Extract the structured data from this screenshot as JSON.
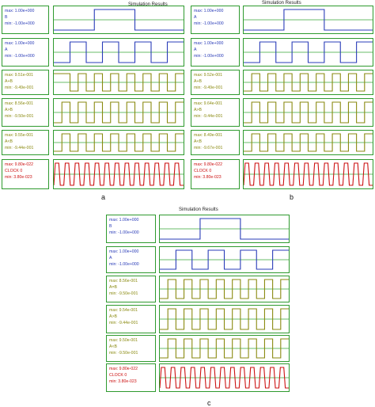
{
  "panels": [
    {
      "id": "a",
      "title": "Simulation Results",
      "label": "a",
      "rows": [
        {
          "max": "max: 1.00e+000",
          "name": "B",
          "min": "min: -1.00e+000",
          "color": "#2a3cb8",
          "wave": [
            0,
            0,
            0,
            0,
            0,
            1,
            1,
            1,
            1,
            1,
            0,
            0,
            0,
            0,
            0,
            0
          ]
        },
        {
          "max": "max: 1.00e+000",
          "name": "A",
          "min": "min: -1.00e+000",
          "color": "#2a3cb8",
          "wave": [
            0,
            0,
            1,
            1,
            0,
            0,
            1,
            1,
            0,
            0,
            1,
            1,
            0,
            0,
            1,
            1
          ]
        },
        {
          "max": "max: 9.51e-001",
          "name": "A+B",
          "min": "min: -9.49e-001",
          "color": "#8a8a10",
          "wave": [
            1,
            1,
            0,
            1,
            0,
            1,
            0,
            1,
            0,
            1,
            0,
            1,
            0,
            1,
            0,
            1
          ]
        },
        {
          "max": "max: 8.56e-001",
          "name": "A>B",
          "min": "min: -9.50e-001",
          "color": "#8a8a10",
          "wave": [
            0,
            1,
            0,
            1,
            0,
            1,
            0,
            1,
            0,
            1,
            0,
            1,
            0,
            1,
            0,
            1
          ]
        },
        {
          "max": "max: 9.55e-001",
          "name": "A<B",
          "min": "min: -9.44e-001",
          "color": "#8a8a10",
          "wave": [
            0,
            1,
            0,
            1,
            0,
            1,
            0,
            1,
            0,
            1,
            0,
            1,
            0,
            1,
            0,
            1
          ]
        },
        {
          "max": "max: 9.80e-022",
          "name": "CLOCK 0",
          "min": "min: 3.80e-023",
          "color": "#cc1010",
          "wave": "clock"
        }
      ]
    },
    {
      "id": "b",
      "title": "Simulation Results",
      "label": "b",
      "rows": [
        {
          "max": "max: 1.00e+000",
          "name": "A",
          "min": "min: -1.00e+000",
          "color": "#2a3cb8",
          "wave": [
            0,
            0,
            0,
            0,
            0,
            1,
            1,
            1,
            1,
            1,
            0,
            0,
            0,
            0,
            0,
            0
          ]
        },
        {
          "max": "max: 1.00e+000",
          "name": "A",
          "min": "min: -1.00e+000",
          "color": "#2a3cb8",
          "wave": [
            0,
            0,
            1,
            1,
            0,
            0,
            1,
            1,
            0,
            0,
            1,
            1,
            0,
            0,
            1,
            1
          ]
        },
        {
          "max": "max: 9.52e-001",
          "name": "A+B",
          "min": "min: -9.49e-001",
          "color": "#8a8a10",
          "wave": [
            0,
            1,
            0,
            1,
            0,
            1,
            0,
            1,
            0,
            1,
            0,
            1,
            0,
            1,
            0,
            1
          ]
        },
        {
          "max": "max: 9.64e-001",
          "name": "A>B",
          "min": "min: -9.44e-001",
          "color": "#8a8a10",
          "wave": [
            0,
            1,
            0,
            1,
            0,
            1,
            0,
            1,
            0,
            1,
            0,
            1,
            0,
            1,
            0,
            1
          ]
        },
        {
          "max": "max: 8.49e-001",
          "name": "A<B",
          "min": "min: -9.67e-001",
          "color": "#8a8a10",
          "wave": [
            0,
            1,
            0,
            1,
            0,
            1,
            0,
            1,
            0,
            1,
            0,
            1,
            0,
            1,
            0,
            1
          ]
        },
        {
          "max": "max: 9.80e-022",
          "name": "CLOCK 0",
          "min": "min: 3.80e-023",
          "color": "#cc1010",
          "wave": "clock"
        }
      ]
    },
    {
      "id": "c",
      "title": "Simulation Results",
      "label": "c",
      "rows": [
        {
          "max": "max: 1.00e+000",
          "name": "B",
          "min": "min: -1.00e+000",
          "color": "#2a3cb8",
          "wave": [
            0,
            0,
            0,
            0,
            0,
            1,
            1,
            1,
            1,
            1,
            0,
            0,
            0,
            0,
            0,
            0
          ]
        },
        {
          "max": "max: 1.00e+000",
          "name": "A",
          "min": "min: -1.00e+000",
          "color": "#2a3cb8",
          "wave": [
            0,
            0,
            1,
            1,
            0,
            0,
            1,
            1,
            0,
            0,
            1,
            1,
            0,
            0,
            1,
            1
          ]
        },
        {
          "max": "max: 8.56e-001",
          "name": "A=B",
          "min": "min: -9.50e-001",
          "color": "#8a8a10",
          "wave": [
            0,
            1,
            0,
            1,
            0,
            1,
            0,
            1,
            0,
            1,
            0,
            1,
            0,
            1,
            0,
            1
          ]
        },
        {
          "max": "max: 9.54e-001",
          "name": "A>B",
          "min": "min: -9.44e-001",
          "color": "#8a8a10",
          "wave": [
            0,
            1,
            0,
            1,
            0,
            1,
            0,
            1,
            0,
            1,
            0,
            1,
            0,
            1,
            0,
            1
          ]
        },
        {
          "max": "max: 9.50e-001",
          "name": "A<B",
          "min": "min: -9.50e-001",
          "color": "#8a8a10",
          "wave": [
            0,
            1,
            0,
            1,
            0,
            1,
            0,
            1,
            0,
            1,
            0,
            1,
            0,
            1,
            0,
            1
          ]
        },
        {
          "max": "max: 9.80e-022",
          "name": "CLOCK 0",
          "min": "min: 3.80e-023",
          "color": "#cc1010",
          "wave": "clock"
        }
      ]
    }
  ]
}
